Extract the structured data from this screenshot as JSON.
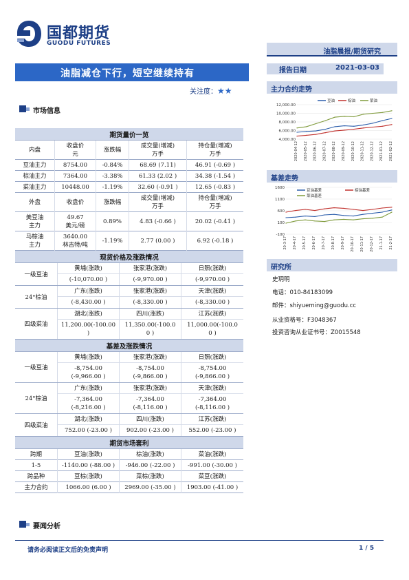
{
  "header": {
    "logo_cn": "国都期货",
    "logo_en": "GUODU FUTURES",
    "report_type": "油脂晨报/期货研究",
    "title": "油脂减仓下行，短空继续持有",
    "attention_label": "关注度：",
    "attention_stars": "★★",
    "date_label": "报告日期",
    "date_value": "2021-03-03"
  },
  "sections": {
    "market_info": "市场信息",
    "news": "要闻分析"
  },
  "futures_table": {
    "title": "期货量价一览",
    "head1": [
      "内盘",
      "收盘价\n元",
      "涨跌幅",
      "成交量(增减)\n万手",
      "持仓量(增减)\n万手"
    ],
    "rows1": [
      [
        "豆油主力",
        "8754.00",
        "-0.84%",
        "68.69 (7.11)",
        "46.91 (-0.69 )"
      ],
      [
        "棕油主力",
        "7364.00",
        "-3.38%",
        "61.33 (2.02 )",
        "34.38 (-1.54 )"
      ],
      [
        "菜油主力",
        "10448.00",
        "-1.19%",
        "32.60 (-0.91 )",
        "12.65 (-0.83 )"
      ]
    ],
    "head2": [
      "外盘",
      "收盘价",
      "涨跌幅",
      "成交量(增减)\n万手",
      "持仓量(增减)\n万手"
    ],
    "rows2": [
      [
        "美豆油\n主力",
        "49.67\n美元/磅",
        "0.89%",
        "4.83 (-0.66 )",
        "20.02 (-0.41 )"
      ],
      [
        "马棕油\n主力",
        "3640.00\n林吉特/吨",
        "-1.19%",
        "2.77 (0.00 )",
        "6.92 (-0.18 )"
      ]
    ]
  },
  "spot_table": {
    "title": "现货价格及涨跌情况",
    "groups": [
      {
        "label": "一级豆油",
        "places": [
          "黄埔(涨跌)",
          "张家港(涨跌)",
          "日照(涨跌)"
        ],
        "values": [
          "(-10,070.00 )",
          "(-9,970.00 )",
          "(-9,970.00 )"
        ]
      },
      {
        "label": "24°棕油",
        "places": [
          "广东(涨跌)",
          "张家港(涨跌)",
          "天津(涨跌)"
        ],
        "values": [
          "(-8,430.00 )",
          "(-8,330.00 )",
          "(-8,330.00 )"
        ]
      },
      {
        "label": "四级菜油",
        "places": [
          "湖北(涨跌)",
          "四川(涨跌)",
          "江苏(涨跌)"
        ],
        "values": [
          "11,200.00(-100.00\n)",
          "11,350.00(-100.0\n0 )",
          "11,000.00(-100.0\n0 )"
        ]
      }
    ]
  },
  "basis_table": {
    "title": "基差及涨跌情况",
    "groups": [
      {
        "label": "一级豆油",
        "places": [
          "黄埔(涨跌)",
          "张家港(涨跌)",
          "日照(涨跌)"
        ],
        "values": [
          "-8,754.00\n(-9,966.00 )",
          "-8,754.00\n(-9,866.00 )",
          "-8,754.00\n(-9,866.00 )"
        ]
      },
      {
        "label": "24°棕油",
        "places": [
          "广东(涨跌)",
          "张家港(涨跌)",
          "天津(涨跌)"
        ],
        "values": [
          "-7,364.00\n(-8,216.00 )",
          "-7,364.00\n(-8,116.00 )",
          "-7,364.00\n(-8,116.00 )"
        ]
      },
      {
        "label": "四级菜油",
        "places": [
          "湖北(涨跌)",
          "四川(涨跌)",
          "江苏(涨跌)"
        ],
        "values": [
          "752.00 (-23.00 )",
          "902.00 (-23.00 )",
          "552.00 (-23.00 )"
        ]
      }
    ]
  },
  "arb_table": {
    "title": "期货市场套利",
    "head": [
      "跨期",
      "豆油(涨跌)",
      "棕油(涨跌)",
      "菜油(涨跌)"
    ],
    "row1": [
      "1-5",
      "-1140.00 (-88.00 )",
      "-946.00 (-22.00 )",
      "-991.00 (-30.00 )"
    ],
    "head2": [
      "跨品种",
      "豆棕(涨跌)",
      "菜棕(涨跌)",
      "菜豆(涨跌)"
    ],
    "row2": [
      "主力合约",
      "1066.00 (6.00 )",
      "2969.00 (-35.00 )",
      "1903.00 (-41.00 )"
    ]
  },
  "side": {
    "trend_title": "主力合约走势",
    "basis_title": "基差走势",
    "research_title": "研究所",
    "analyst": "史玥明",
    "phone": "电话：010-84183099",
    "email": "邮件：shiyueming@guodu.cc",
    "cert": "从业资格号：F3048367",
    "advisor": "投资咨询从业证书号：Z0015548"
  },
  "chart_data": [
    {
      "type": "line",
      "title": "主力合约走势",
      "x": [
        "2020-04-12",
        "2020-05-12",
        "2020-06-12",
        "2020-07-12",
        "2020-08-12",
        "2020-09-12",
        "2020-10-12",
        "2020-11-12",
        "2020-12-12",
        "2021-01-12",
        "2021-02-12"
      ],
      "series": [
        {
          "name": "豆油",
          "color": "#2a5caa",
          "values": [
            5600,
            5800,
            5900,
            6300,
            6900,
            7100,
            7000,
            7300,
            7700,
            8300,
            8800
          ]
        },
        {
          "name": "棕油",
          "color": "#c0302c",
          "values": [
            4700,
            4900,
            5100,
            5500,
            5900,
            6100,
            6300,
            6600,
            6800,
            7000,
            7400
          ]
        },
        {
          "name": "菜油",
          "color": "#7f9a3b",
          "values": [
            6600,
            6900,
            7600,
            8300,
            9100,
            9300,
            9200,
            9800,
            10000,
            10200,
            10600
          ]
        }
      ],
      "ylim": [
        4000,
        12000
      ],
      "yticks": [
        "4,000.00",
        "6,000.00",
        "8,000.00",
        "10,000.00",
        "12,000.00"
      ],
      "legend": "top"
    },
    {
      "type": "line",
      "title": "基差走势",
      "x": [
        "20-3-17",
        "20-4-17",
        "20-5-17",
        "20-6-17",
        "20-7-17",
        "20-8-17",
        "20-9-17",
        "20-10-17",
        "20-11-17",
        "20-12-17",
        "21-1-17",
        "21-2-17"
      ],
      "series": [
        {
          "name": "豆油基差",
          "color": "#2a5caa",
          "values": [
            500,
            520,
            560,
            540,
            600,
            620,
            580,
            560,
            620,
            660,
            700,
            780
          ]
        },
        {
          "name": "棕油基差",
          "color": "#c0302c",
          "values": [
            700,
            760,
            800,
            760,
            820,
            860,
            840,
            800,
            760,
            800,
            850,
            880
          ]
        },
        {
          "name": "菜油基差",
          "color": "#7f9a3b",
          "values": [
            300,
            380,
            420,
            380,
            360,
            420,
            440,
            420,
            460,
            480,
            520,
            700
          ]
        }
      ],
      "ylim": [
        -100,
        1600
      ],
      "yticks": [
        "-100",
        "100",
        "600",
        "1100",
        "1600"
      ],
      "legend": "top"
    }
  ],
  "footer": {
    "note": "请务必阅读正文后的免责声明",
    "page": "1 / 5"
  }
}
